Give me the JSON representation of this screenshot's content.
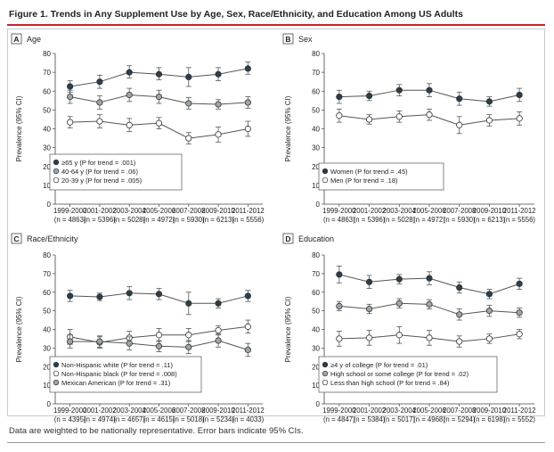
{
  "figure": {
    "title": "Figure 1. Trends in Any Supplement Use by Age, Sex, Race/Ethnicity, and Education Among US Adults",
    "footnote": "Data are weighted to be nationally representative. Error bars indicate 95% CIs."
  },
  "colors": {
    "dark": "#2b3e4c",
    "medium": "#9aa5ac",
    "light": "#ffffff",
    "accent": "#c0262d",
    "line": "#555555"
  },
  "chart_data": [
    {
      "panel_letter": "A",
      "panel_title": "Age",
      "type": "line",
      "ylabel": "Prevalence (95% CI)",
      "ylim": [
        0,
        80
      ],
      "yticks": [
        0,
        10,
        20,
        30,
        40,
        50,
        60,
        70,
        80
      ],
      "categories": [
        "1999-2000",
        "2001-2002",
        "2003-2004",
        "2005-2006",
        "2007-2008",
        "2009-2010",
        "2011-2012"
      ],
      "n_labels": [
        "(n = 4863)",
        "(n = 5396)",
        "(n = 5028)",
        "(n = 4972)",
        "(n = 5930)",
        "(n = 6213)",
        "(n = 5556)"
      ],
      "series": [
        {
          "label": "≥65 y (P for trend = .001)",
          "fill": "dark",
          "values": [
            62.5,
            65,
            70,
            69,
            67.5,
            69,
            72
          ],
          "lo": [
            59.5,
            61.5,
            67,
            66,
            62.5,
            65.5,
            69
          ],
          "hi": [
            65.5,
            68.5,
            73.5,
            72.5,
            72.5,
            72.5,
            75.5
          ]
        },
        {
          "label": "40-64 y (P for trend = .06)",
          "fill": "medium",
          "values": [
            57,
            54,
            58,
            57,
            53.5,
            53,
            54
          ],
          "lo": [
            53.5,
            50.5,
            54.5,
            53.5,
            50.5,
            50.5,
            51
          ],
          "hi": [
            60.5,
            57.5,
            61.5,
            60.5,
            56.5,
            55.5,
            57
          ]
        },
        {
          "label": "20-39 y (P for trend = .005)",
          "fill": "light",
          "values": [
            43.5,
            44,
            42,
            43,
            35,
            37,
            40
          ],
          "lo": [
            40.5,
            40.5,
            38.5,
            40,
            32,
            33,
            36
          ],
          "hi": [
            46.5,
            47.5,
            45.5,
            46,
            38,
            41,
            44
          ]
        }
      ]
    },
    {
      "panel_letter": "B",
      "panel_title": "Sex",
      "type": "line",
      "ylabel": "Prevalence (95% CI)",
      "ylim": [
        0,
        80
      ],
      "yticks": [
        0,
        10,
        20,
        30,
        40,
        50,
        60,
        70,
        80
      ],
      "categories": [
        "1999-2000",
        "2001-2002",
        "2003-2004",
        "2005-2006",
        "2007-2008",
        "2009-2010",
        "2011-2012"
      ],
      "n_labels": [
        "(n = 4863)",
        "(n = 5396)",
        "(n = 5028)",
        "(n = 4972)",
        "(n = 5930)",
        "(n = 6213)",
        "(n = 5556)"
      ],
      "series": [
        {
          "label": "Women (P for trend = .45)",
          "fill": "dark",
          "values": [
            57,
            57.5,
            60.5,
            60.5,
            56,
            54.5,
            58
          ],
          "lo": [
            53.5,
            55,
            57.5,
            57,
            52.5,
            52,
            54.5
          ],
          "hi": [
            60.5,
            60,
            63.5,
            64,
            59.5,
            57,
            61.5
          ]
        },
        {
          "label": "Men (P for trend = .18)",
          "fill": "light",
          "values": [
            47,
            45,
            46.5,
            47.5,
            42,
            44.5,
            45.5
          ],
          "lo": [
            43.5,
            42.5,
            43.5,
            44.5,
            37.5,
            41.5,
            42
          ],
          "hi": [
            50.5,
            47.5,
            49.5,
            50.5,
            46.5,
            47.5,
            49
          ]
        }
      ]
    },
    {
      "panel_letter": "C",
      "panel_title": "Race/Ethnicity",
      "type": "line",
      "ylabel": "Prevalence (95% CI)",
      "ylim": [
        0,
        80
      ],
      "yticks": [
        0,
        10,
        20,
        30,
        40,
        50,
        60,
        70,
        80
      ],
      "categories": [
        "1999-2000",
        "2001-2002",
        "2003-2004",
        "2005-2006",
        "2007-2008",
        "2009-2010",
        "2011-2012"
      ],
      "n_labels": [
        "(n = 4395)",
        "(n = 4974)",
        "(n = 4657)",
        "(n = 4615)",
        "(n = 5018)",
        "(n = 5234)",
        "(n = 4033)"
      ],
      "series": [
        {
          "label": "Non-Hispanic white (P for trend = .11)",
          "fill": "dark",
          "values": [
            58,
            57.5,
            59.5,
            59,
            54,
            54,
            58
          ],
          "lo": [
            55,
            55.5,
            56,
            56,
            48,
            51.5,
            55
          ],
          "hi": [
            61,
            59.5,
            63,
            62,
            60,
            56.5,
            61
          ]
        },
        {
          "label": "Non-Hispanic black (P for trend = .008)",
          "fill": "light",
          "values": [
            36,
            33,
            35.5,
            37,
            37,
            39.5,
            41.5
          ],
          "lo": [
            32,
            30,
            32,
            33.5,
            33.5,
            37,
            38
          ],
          "hi": [
            40,
            36,
            39,
            40.5,
            40.5,
            42,
            45
          ]
        },
        {
          "label": "Mexican American (P for trend = .31)",
          "fill": "medium",
          "values": [
            33.5,
            33.5,
            32.5,
            31,
            30.5,
            34,
            29
          ],
          "lo": [
            30,
            30.5,
            29,
            28,
            27,
            30.5,
            25.5
          ],
          "hi": [
            37,
            36.5,
            36,
            34,
            34,
            37.5,
            32.5
          ]
        }
      ]
    },
    {
      "panel_letter": "D",
      "panel_title": "Education",
      "type": "line",
      "ylabel": "Prevalence (95% CI)",
      "ylim": [
        0,
        80
      ],
      "yticks": [
        0,
        10,
        20,
        30,
        40,
        50,
        60,
        70,
        80
      ],
      "categories": [
        "1999-2000",
        "2001-2002",
        "2003-2004",
        "2005-2006",
        "2007-2008",
        "2009-2010",
        "2011-2012"
      ],
      "n_labels": [
        "(n = 4847)",
        "(n = 5384)",
        "(n = 5017)",
        "(n = 4968)",
        "(n = 5294)",
        "(n = 6198)",
        "(n = 5552)"
      ],
      "series": [
        {
          "label": "≥4 y of college (P for trend = .01)",
          "fill": "dark",
          "values": [
            69.5,
            65.5,
            67,
            67.5,
            62.5,
            59,
            64.5
          ],
          "lo": [
            65,
            62,
            64.5,
            64,
            59.5,
            56.5,
            61.5
          ],
          "hi": [
            74,
            69,
            69.5,
            71,
            65.5,
            61.5,
            67.5
          ]
        },
        {
          "label": "High school or some college (P for trend = .02)",
          "fill": "medium",
          "values": [
            52.5,
            51,
            54,
            53.5,
            48,
            50,
            49
          ],
          "lo": [
            50,
            48.5,
            51.5,
            51,
            45,
            47,
            46.5
          ],
          "hi": [
            55,
            53.5,
            56.5,
            56,
            51,
            53,
            51.5
          ]
        },
        {
          "label": "Less than high school (P for trend = .84)",
          "fill": "light",
          "values": [
            35,
            35.5,
            37,
            35.5,
            33.5,
            35,
            37.5
          ],
          "lo": [
            31,
            31.5,
            32.5,
            31.5,
            30.5,
            32.5,
            35
          ],
          "hi": [
            39,
            39.5,
            41.5,
            39.5,
            36.5,
            37.5,
            40
          ]
        }
      ]
    }
  ]
}
